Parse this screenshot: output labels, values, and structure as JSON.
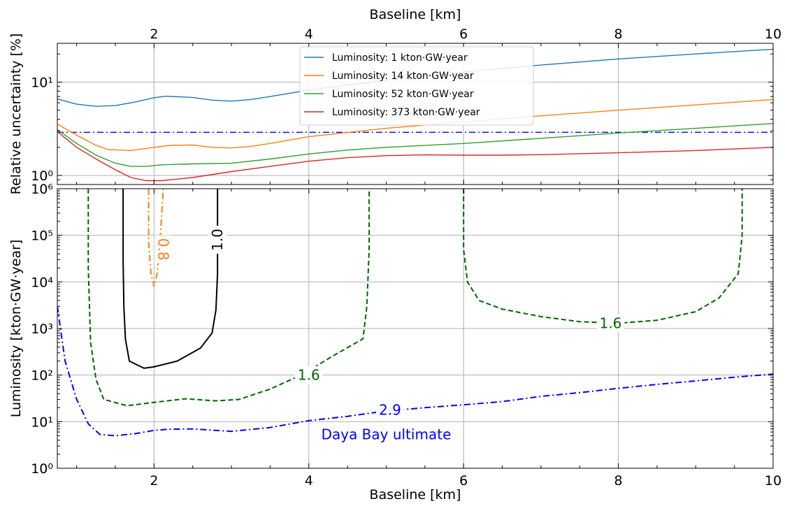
{
  "chart_data": [
    {
      "type": "line",
      "xlabel_top": "Baseline [km]",
      "ylabel": "Relative uncertainty [%]",
      "yscale": "log",
      "xlim": [
        0.75,
        10
      ],
      "ylim": [
        0.8,
        26
      ],
      "x_ticks": [
        2,
        4,
        6,
        8,
        10
      ],
      "x_tick_labels": [
        "2",
        "4",
        "6",
        "8",
        "10"
      ],
      "y_ticks": [
        1,
        10
      ],
      "y_tick_labels": [
        "10⁰",
        "10¹"
      ],
      "grid": true,
      "legend_position": "top-center",
      "reference_line": {
        "y": 2.9,
        "color": "#0000ff",
        "style": "dash-dot"
      },
      "series": [
        {
          "name": "Luminosity: 1 kton·GW·year",
          "color": "#1f77b4",
          "points": [
            [
              0.75,
              6.6
            ],
            [
              1,
              5.8
            ],
            [
              1.25,
              5.5
            ],
            [
              1.5,
              5.6
            ],
            [
              1.75,
              6.1
            ],
            [
              2,
              6.8
            ],
            [
              2.15,
              7.05
            ],
            [
              2.5,
              6.85
            ],
            [
              2.75,
              6.4
            ],
            [
              3,
              6.25
            ],
            [
              3.25,
              6.5
            ],
            [
              3.5,
              7.0
            ],
            [
              4,
              8.2
            ],
            [
              5,
              10.5
            ],
            [
              6,
              12.8
            ],
            [
              7,
              15.2
            ],
            [
              8,
              17.7
            ],
            [
              9,
              20
            ],
            [
              10,
              22.5
            ]
          ]
        },
        {
          "name": "Luminosity: 14 kton·GW·year",
          "color": "#ff7f0e",
          "points": [
            [
              0.75,
              3.55
            ],
            [
              1,
              2.7
            ],
            [
              1.25,
              2.1
            ],
            [
              1.4,
              1.9
            ],
            [
              1.7,
              1.85
            ],
            [
              2,
              2.0
            ],
            [
              2.2,
              2.1
            ],
            [
              2.5,
              2.12
            ],
            [
              2.75,
              2.0
            ],
            [
              3,
              1.97
            ],
            [
              3.25,
              2.05
            ],
            [
              3.5,
              2.2
            ],
            [
              4,
              2.6
            ],
            [
              5,
              3.2
            ],
            [
              6,
              3.75
            ],
            [
              7,
              4.35
            ],
            [
              8,
              5.0
            ],
            [
              9,
              5.7
            ],
            [
              10,
              6.5
            ]
          ]
        },
        {
          "name": "Luminosity: 52 kton·GW·year",
          "color": "#2ca02c",
          "points": [
            [
              0.75,
              3.1
            ],
            [
              1,
              2.2
            ],
            [
              1.25,
              1.65
            ],
            [
              1.5,
              1.35
            ],
            [
              1.7,
              1.25
            ],
            [
              1.9,
              1.25
            ],
            [
              2.1,
              1.3
            ],
            [
              2.5,
              1.33
            ],
            [
              3,
              1.35
            ],
            [
              3.5,
              1.5
            ],
            [
              4,
              1.7
            ],
            [
              4.5,
              1.87
            ],
            [
              5,
              2.0
            ],
            [
              6,
              2.2
            ],
            [
              7,
              2.5
            ],
            [
              8,
              2.85
            ],
            [
              9,
              3.2
            ],
            [
              10,
              3.6
            ]
          ]
        },
        {
          "name": "Luminosity: 373 kton·GW·year",
          "color": "#d62728",
          "points": [
            [
              0.75,
              2.95
            ],
            [
              1,
              2.0
            ],
            [
              1.25,
              1.5
            ],
            [
              1.5,
              1.15
            ],
            [
              1.7,
              0.95
            ],
            [
              1.9,
              0.88
            ],
            [
              2.1,
              0.88
            ],
            [
              2.5,
              0.95
            ],
            [
              3,
              1.1
            ],
            [
              3.5,
              1.25
            ],
            [
              4,
              1.42
            ],
            [
              4.5,
              1.55
            ],
            [
              5,
              1.63
            ],
            [
              5.5,
              1.66
            ],
            [
              6,
              1.65
            ],
            [
              6.5,
              1.65
            ],
            [
              7,
              1.67
            ],
            [
              8,
              1.75
            ],
            [
              9,
              1.85
            ],
            [
              10,
              2.0
            ]
          ]
        }
      ]
    },
    {
      "type": "contour",
      "xlabel": "Baseline [km]",
      "ylabel": "Luminosity [kton·GW·year]",
      "yscale": "log",
      "xlim": [
        0.75,
        10
      ],
      "ylim": [
        1,
        1000000
      ],
      "x_ticks": [
        2,
        4,
        6,
        8,
        10
      ],
      "x_tick_labels": [
        "2",
        "4",
        "6",
        "8",
        "10"
      ],
      "y_ticks": [
        1,
        10,
        100,
        1000,
        10000,
        100000,
        1000000
      ],
      "y_tick_labels": [
        "10⁰",
        "10¹",
        "10²",
        "10³",
        "10⁴",
        "10⁵",
        "10⁶"
      ],
      "grid": true,
      "annotation": "Daya Bay ultimate",
      "contours": [
        {
          "level": "0.8",
          "color": "#ff7f0e",
          "style": "dash-dot",
          "label_at": [
            2.12,
            50000
          ],
          "label_rotation": 90,
          "points": [
            [
              1.93,
              1000000
            ],
            [
              1.93,
              70000
            ],
            [
              1.96,
              15000
            ],
            [
              2.0,
              8000
            ],
            [
              2.04,
              15000
            ],
            [
              2.07,
              50000
            ],
            [
              2.1,
              300000
            ],
            [
              2.12,
              1000000
            ]
          ]
        },
        {
          "level": "1.0",
          "color": "#000000",
          "style": "solid",
          "label_at": [
            2.82,
            80000
          ],
          "label_rotation": -90,
          "points": [
            [
              1.6,
              1000000
            ],
            [
              1.6,
              30000
            ],
            [
              1.61,
              3000
            ],
            [
              1.63,
              600
            ],
            [
              1.68,
              200
            ],
            [
              1.87,
              140
            ],
            [
              2.0,
              150
            ],
            [
              2.3,
              200
            ],
            [
              2.6,
              380
            ],
            [
              2.75,
              800
            ],
            [
              2.8,
              2500
            ],
            [
              2.82,
              15000
            ],
            [
              2.82,
              1000000
            ]
          ]
        },
        {
          "level": "1.6",
          "color": "#006400",
          "style": "dashed",
          "label_at": [
            4.0,
            100
          ],
          "label_rotation": 0,
          "points": [
            [
              1.15,
              1000000
            ],
            [
              1.15,
              20000
            ],
            [
              1.18,
              500
            ],
            [
              1.25,
              80
            ],
            [
              1.35,
              30
            ],
            [
              1.65,
              22
            ],
            [
              2.0,
              26
            ],
            [
              2.4,
              31
            ],
            [
              2.8,
              28
            ],
            [
              3.1,
              30
            ],
            [
              3.5,
              50
            ],
            [
              3.9,
              100
            ],
            [
              4.3,
              250
            ],
            [
              4.7,
              600
            ],
            [
              4.75,
              3000
            ],
            [
              4.78,
              50000
            ],
            [
              4.78,
              1000000
            ]
          ]
        },
        {
          "level": "1.6",
          "color": "#006400",
          "style": "dashed",
          "label_at": [
            7.9,
            1300
          ],
          "label_rotation": 0,
          "points": [
            [
              6.0,
              1000000
            ],
            [
              6.0,
              50000
            ],
            [
              6.05,
              10000
            ],
            [
              6.2,
              4000
            ],
            [
              6.5,
              2600
            ],
            [
              7.0,
              1800
            ],
            [
              7.5,
              1400
            ],
            [
              8.0,
              1300
            ],
            [
              8.5,
              1500
            ],
            [
              9.0,
              2300
            ],
            [
              9.3,
              4500
            ],
            [
              9.55,
              15000
            ],
            [
              9.6,
              100000
            ],
            [
              9.6,
              1000000
            ]
          ]
        },
        {
          "level": "2.9",
          "color": "#0000ff",
          "style": "dash-dot",
          "label_at": [
            5.05,
            18
          ],
          "label_rotation": 0,
          "points": [
            [
              0.75,
              3000
            ],
            [
              0.85,
              200
            ],
            [
              1.0,
              30
            ],
            [
              1.15,
              9
            ],
            [
              1.3,
              5.3
            ],
            [
              1.5,
              5.0
            ],
            [
              1.75,
              5.5
            ],
            [
              2.0,
              6.5
            ],
            [
              2.2,
              6.9
            ],
            [
              2.5,
              7.0
            ],
            [
              3.0,
              6.2
            ],
            [
              3.5,
              7.5
            ],
            [
              4.0,
              10.5
            ],
            [
              4.5,
              13
            ],
            [
              5.0,
              17
            ],
            [
              5.5,
              20
            ],
            [
              6.0,
              23
            ],
            [
              6.5,
              27
            ],
            [
              7.0,
              35
            ],
            [
              7.5,
              42
            ],
            [
              8.0,
              52
            ],
            [
              8.5,
              63
            ],
            [
              9.0,
              75
            ],
            [
              9.5,
              90
            ],
            [
              10.0,
              105
            ]
          ]
        }
      ]
    }
  ]
}
